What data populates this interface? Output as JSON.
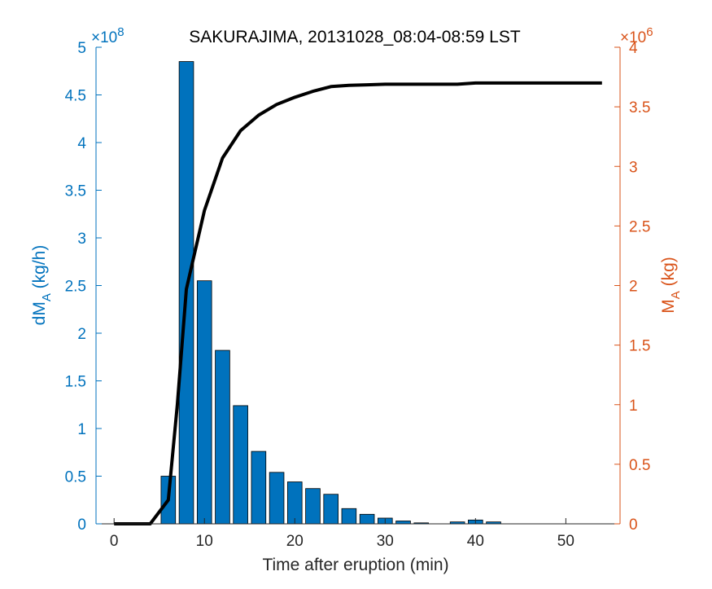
{
  "chart_data": {
    "type": "bar",
    "title": "SAKURAJIMA, 20131028_08:04-08:59 LST",
    "xlabel": "Time after eruption (min)",
    "ylabel_left": {
      "base": "dM",
      "sub": "A",
      "rest": " (kg/h)"
    },
    "ylabel_right": {
      "base": "M",
      "sub": "A",
      "rest": " (kg)"
    },
    "xlim": [
      -2,
      56
    ],
    "x_ticks": [
      0,
      10,
      20,
      30,
      40,
      50
    ],
    "left_axis": {
      "ylim": [
        0,
        5
      ],
      "ticks": [
        0,
        0.5,
        1,
        1.5,
        2,
        2.5,
        3,
        3.5,
        4,
        4.5,
        5
      ],
      "exponent_mantissa": "×10",
      "exponent_power": "8",
      "color": "#0072BD"
    },
    "right_axis": {
      "ylim": [
        0,
        4
      ],
      "ticks": [
        0,
        0.5,
        1,
        1.5,
        2,
        2.5,
        3,
        3.5,
        4
      ],
      "exponent_mantissa": "×10",
      "exponent_power": "6",
      "color": "#D95319"
    },
    "series": [
      {
        "type": "bar",
        "axis": "left",
        "color": "#0072BD",
        "x": [
          6,
          8,
          10,
          12,
          14,
          16,
          18,
          20,
          22,
          24,
          26,
          28,
          30,
          32,
          34,
          36,
          38,
          40,
          42
        ],
        "values": [
          0.5,
          4.85,
          2.55,
          1.82,
          1.24,
          0.76,
          0.54,
          0.44,
          0.37,
          0.31,
          0.16,
          0.1,
          0.06,
          0.03,
          0.01,
          0.0,
          0.02,
          0.04,
          0.02
        ]
      },
      {
        "type": "line",
        "axis": "right",
        "color": "#000000",
        "x": [
          0,
          2,
          4,
          5,
          6,
          7,
          8,
          9,
          10,
          12,
          14,
          16,
          18,
          20,
          22,
          24,
          26,
          28,
          30,
          32,
          34,
          36,
          38,
          40,
          42,
          44,
          46,
          48,
          50,
          52,
          54
        ],
        "values": [
          0,
          0,
          0,
          0.1,
          0.2,
          1.0,
          1.97,
          2.3,
          2.63,
          3.07,
          3.3,
          3.43,
          3.52,
          3.58,
          3.63,
          3.67,
          3.68,
          3.685,
          3.69,
          3.69,
          3.69,
          3.69,
          3.69,
          3.7,
          3.7,
          3.7,
          3.7,
          3.7,
          3.7,
          3.7,
          3.7
        ]
      }
    ]
  }
}
